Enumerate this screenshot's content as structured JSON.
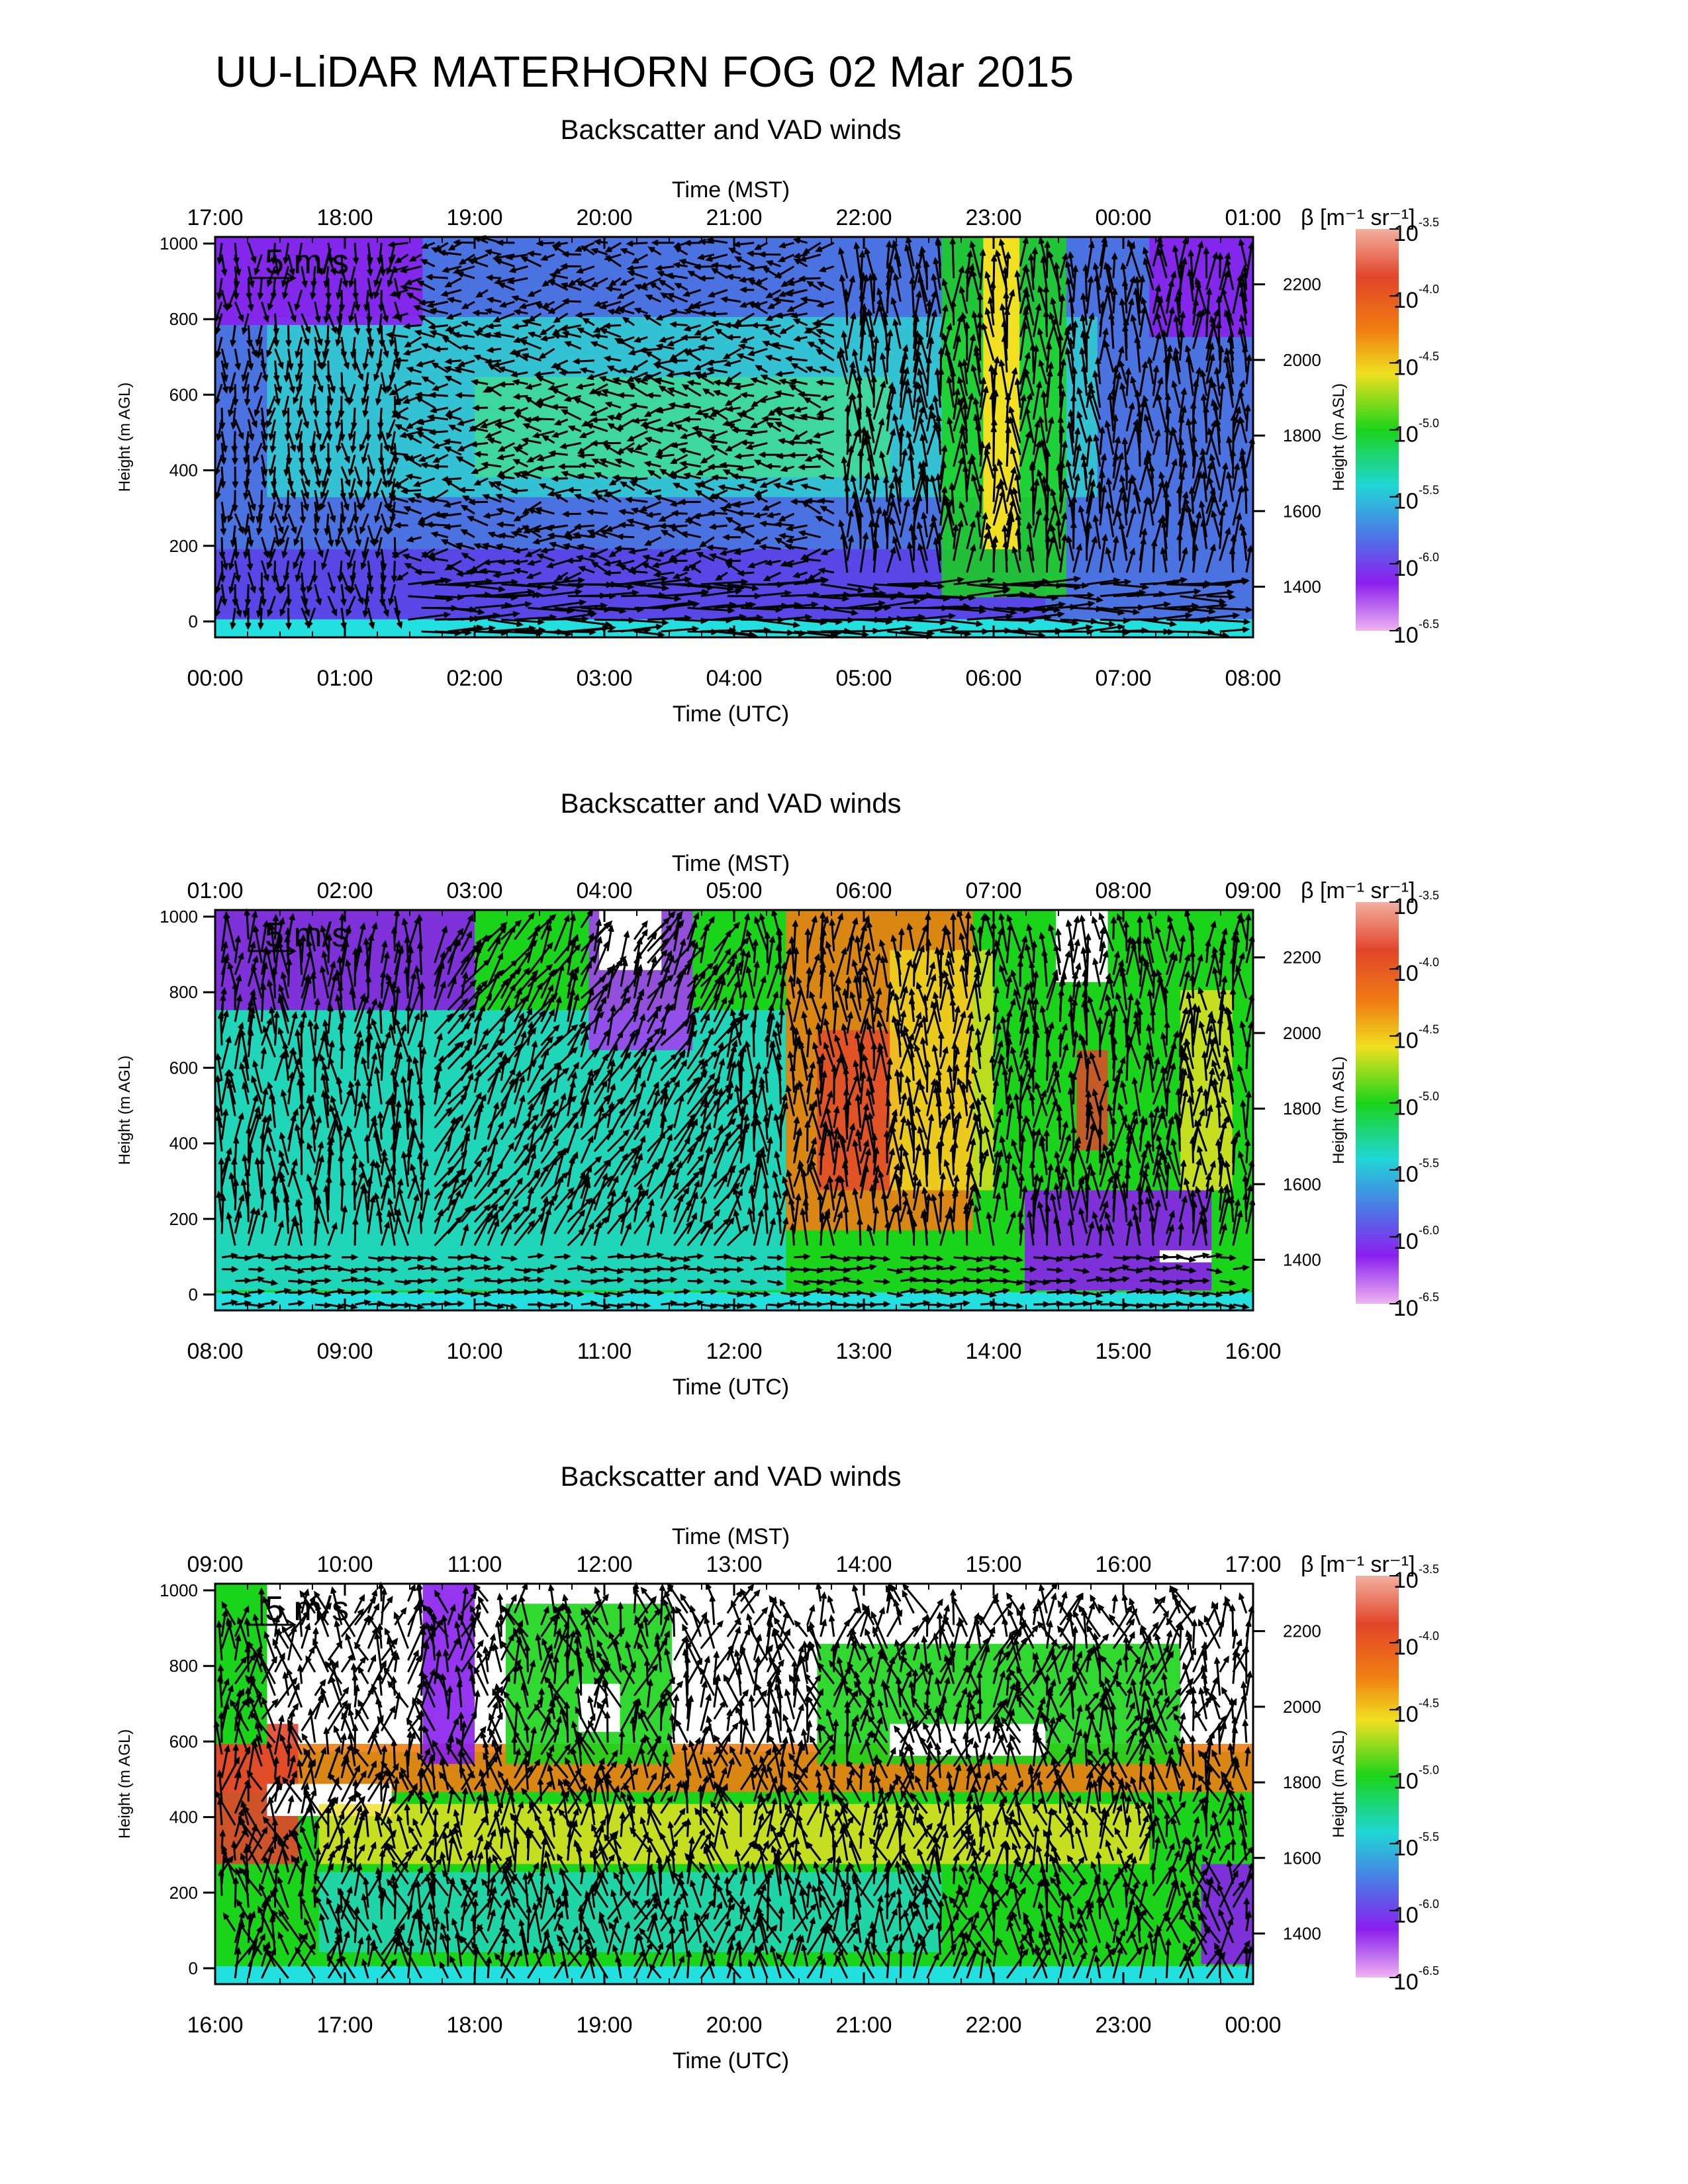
{
  "page_title": "UU-LiDAR MATERHORN FOG  02 Mar 2015",
  "chart_data": [
    {
      "type": "heatmap",
      "title": "Backscatter and VAD winds",
      "top_axis_label": "Time (MST)",
      "top_ticks": [
        "17:00",
        "18:00",
        "19:00",
        "20:00",
        "21:00",
        "22:00",
        "23:00",
        "00:00",
        "01:00"
      ],
      "xlabel": "Time (UTC)",
      "bottom_ticks": [
        "00:00",
        "01:00",
        "02:00",
        "03:00",
        "04:00",
        "05:00",
        "06:00",
        "07:00",
        "08:00"
      ],
      "xlim_hours_utc": [
        0,
        8
      ],
      "ylabel": "Height (m AGL)",
      "yticks": [
        "0",
        "200",
        "400",
        "600",
        "800",
        "1000"
      ],
      "ylim": [
        0,
        1000
      ],
      "ylabel_right": "Height (m ASL)",
      "yticks_right": [
        "1400",
        "1600",
        "1800",
        "2000",
        "2200"
      ],
      "reference_vector": "5 m/s",
      "colorbar": {
        "label_symbol": "β",
        "label_units": "[m⁻¹ sr⁻¹]",
        "base": "10",
        "exponents": [
          "-3.5",
          "-4.0",
          "-4.5",
          "-5.0",
          "-5.5",
          "-6.0",
          "-6.5"
        ],
        "scale": "log"
      },
      "grid": false
    },
    {
      "type": "heatmap",
      "title": "Backscatter and VAD winds",
      "top_axis_label": "Time (MST)",
      "top_ticks": [
        "01:00",
        "02:00",
        "03:00",
        "04:00",
        "05:00",
        "06:00",
        "07:00",
        "08:00",
        "09:00"
      ],
      "xlabel": "Time (UTC)",
      "bottom_ticks": [
        "08:00",
        "09:00",
        "10:00",
        "11:00",
        "12:00",
        "13:00",
        "14:00",
        "15:00",
        "16:00"
      ],
      "xlim_hours_utc": [
        8,
        16
      ],
      "ylabel": "Height (m AGL)",
      "yticks": [
        "0",
        "200",
        "400",
        "600",
        "800",
        "1000"
      ],
      "ylim": [
        0,
        1000
      ],
      "ylabel_right": "Height (m ASL)",
      "yticks_right": [
        "1400",
        "1600",
        "1800",
        "2000",
        "2200"
      ],
      "reference_vector": "5 m/s",
      "colorbar": {
        "label_symbol": "β",
        "label_units": "[m⁻¹ sr⁻¹]",
        "base": "10",
        "exponents": [
          "-3.5",
          "-4.0",
          "-4.5",
          "-5.0",
          "-5.5",
          "-6.0",
          "-6.5"
        ],
        "scale": "log"
      },
      "grid": false
    },
    {
      "type": "heatmap",
      "title": "Backscatter and VAD winds",
      "top_axis_label": "Time (MST)",
      "top_ticks": [
        "09:00",
        "10:00",
        "11:00",
        "12:00",
        "13:00",
        "14:00",
        "15:00",
        "16:00",
        "17:00"
      ],
      "xlabel": "Time (UTC)",
      "bottom_ticks": [
        "16:00",
        "17:00",
        "18:00",
        "19:00",
        "20:00",
        "21:00",
        "22:00",
        "23:00",
        "00:00"
      ],
      "xlim_hours_utc": [
        16,
        24
      ],
      "ylabel": "Height (m AGL)",
      "yticks": [
        "0",
        "200",
        "400",
        "600",
        "800",
        "1000"
      ],
      "ylim": [
        0,
        1000
      ],
      "ylabel_right": "Height (m ASL)",
      "yticks_right": [
        "1400",
        "1600",
        "1800",
        "2000",
        "2200"
      ],
      "reference_vector": "5 m/s",
      "colorbar": {
        "label_symbol": "β",
        "label_units": "[m⁻¹ sr⁻¹]",
        "base": "10",
        "exponents": [
          "-3.5",
          "-4.0",
          "-4.5",
          "-5.0",
          "-5.5",
          "-6.0",
          "-6.5"
        ],
        "scale": "log"
      },
      "grid": false
    }
  ]
}
